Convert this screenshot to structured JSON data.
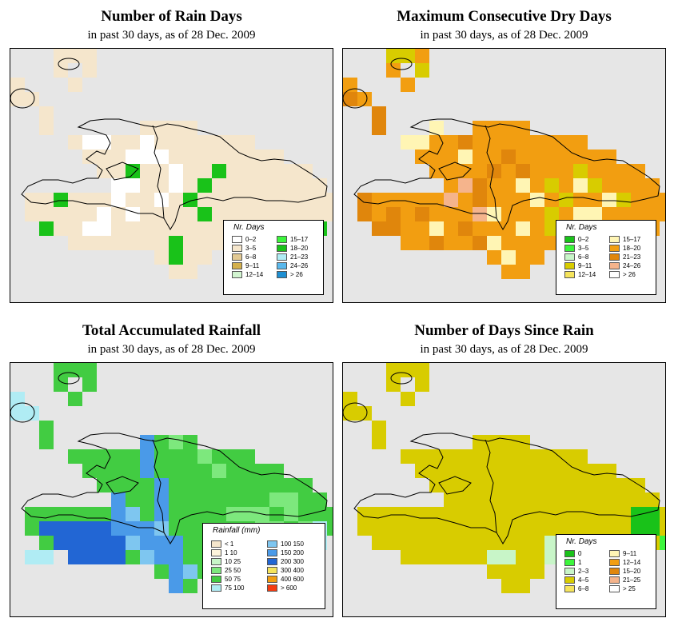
{
  "colors": {
    "map_background": "#e6e6e6",
    "coastline": "#000000"
  },
  "panels": [
    {
      "id": "rain-days",
      "title": "Number of Rain Days",
      "subtitle": "in past 30 days, as of  28 Dec. 2009",
      "legend_title": "Nr. Days",
      "fill_default": "#f5e6cc",
      "legend": [
        {
          "label": "0–2",
          "color": "#ffffff"
        },
        {
          "label": "3–5",
          "color": "#f5e6cc"
        },
        {
          "label": "6–8",
          "color": "#e2c993"
        },
        {
          "label": "9–11",
          "color": "#d4b04c"
        },
        {
          "label": "12–14",
          "color": "#d2f5d0"
        },
        {
          "label": "15–17",
          "color": "#3cf53c"
        },
        {
          "label": "18–20",
          "color": "#19c219"
        },
        {
          "label": "21–23",
          "color": "#b0ecf4"
        },
        {
          "label": "24–26",
          "color": "#5ab8ec"
        },
        {
          "label": "> 26",
          "color": "#1e8fd2"
        }
      ]
    },
    {
      "id": "dry-days",
      "title": "Maximum Consecutive Dry Days",
      "subtitle": "in past 30 days, as of  28 Dec. 2009",
      "legend_title": "Nr. Days",
      "fill_default": "#f29e11",
      "legend": [
        {
          "label": "0–2",
          "color": "#19c219"
        },
        {
          "label": "3–5",
          "color": "#3cf53c"
        },
        {
          "label": "6–8",
          "color": "#c8f5c8"
        },
        {
          "label": "9–11",
          "color": "#d8cc00"
        },
        {
          "label": "12–14",
          "color": "#f5e45c"
        },
        {
          "label": "15–17",
          "color": "#fff5b4"
        },
        {
          "label": "18–20",
          "color": "#f29e11"
        },
        {
          "label": "21–23",
          "color": "#e0860c"
        },
        {
          "label": "24–26",
          "color": "#f5b48c"
        },
        {
          "label": "> 26",
          "color": "#ffffff"
        }
      ]
    },
    {
      "id": "rainfall",
      "title": "Total Accumulated Rainfall",
      "subtitle": "in past 30 days, as of  28 Dec. 2009",
      "legend_title": "Rainfall (mm)",
      "fill_default": "#42cc42",
      "legend": [
        {
          "label": "< 1",
          "color": "#f5e6cc"
        },
        {
          "label": "1    10",
          "color": "#fff5dc"
        },
        {
          "label": "10    25",
          "color": "#c8f5c8"
        },
        {
          "label": "25    50",
          "color": "#7de87d"
        },
        {
          "label": "50    75",
          "color": "#42cc42"
        },
        {
          "label": "75  100",
          "color": "#b0ecf4"
        },
        {
          "label": "100  150",
          "color": "#7ec6f0"
        },
        {
          "label": "150  200",
          "color": "#4a9ae8"
        },
        {
          "label": "200  300",
          "color": "#2266d4"
        },
        {
          "label": "300  400",
          "color": "#f5e45c"
        },
        {
          "label": "400  600",
          "color": "#f29e11"
        },
        {
          "label": "> 600",
          "color": "#f53c11"
        }
      ]
    },
    {
      "id": "days-since-rain",
      "title": "Number of Days Since Rain",
      "subtitle": "in past 30 days, as of  28 Dec. 2009",
      "legend_title": "Nr. Days",
      "fill_default": "#d8cc00",
      "legend": [
        {
          "label": "0",
          "color": "#19c219"
        },
        {
          "label": "1",
          "color": "#3cf53c"
        },
        {
          "label": "2–3",
          "color": "#c8f5c8"
        },
        {
          "label": "4–5",
          "color": "#d8cc00"
        },
        {
          "label": "6–8",
          "color": "#f5e45c"
        },
        {
          "label": "9–11",
          "color": "#fff5b4"
        },
        {
          "label": "12–14",
          "color": "#f29e11"
        },
        {
          "label": "15–20",
          "color": "#e0860c"
        },
        {
          "label": "21–25",
          "color": "#f5b48c"
        },
        {
          "label": "> 25",
          "color": "#ffffff"
        }
      ]
    }
  ]
}
